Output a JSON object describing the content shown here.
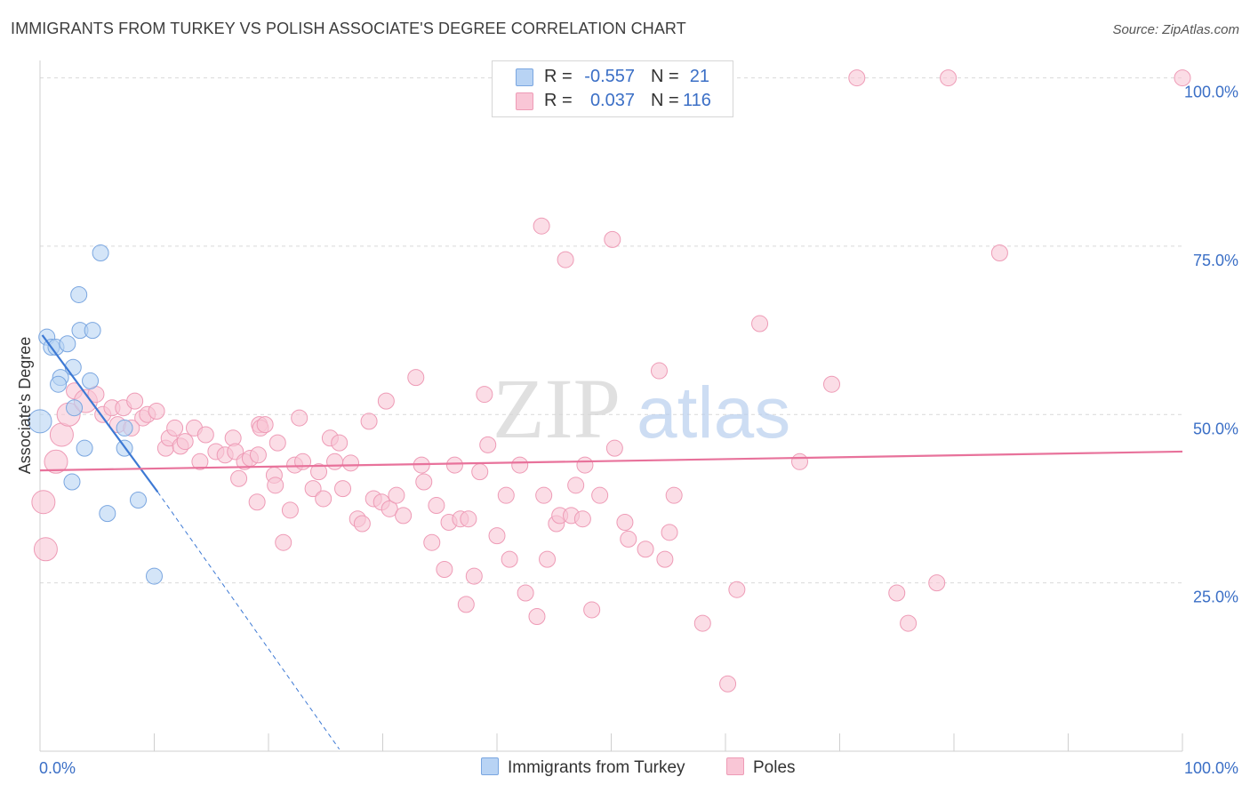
{
  "title": "IMMIGRANTS FROM TURKEY VS POLISH ASSOCIATE'S DEGREE CORRELATION CHART",
  "source": "Source: ZipAtlas.com",
  "watermark": {
    "part1": "ZIP",
    "part2": "atlas"
  },
  "colors": {
    "blue_fill": "#b8d3f4",
    "blue_stroke": "#7aa6e0",
    "blue_line": "#3d79d4",
    "pink_fill": "#f9c6d6",
    "pink_stroke": "#ee9bb6",
    "pink_line": "#e8729b",
    "axis_text": "#3b6fc6",
    "grid": "#d9d9d9"
  },
  "legend": {
    "rows": [
      {
        "series": "blue",
        "r_label": "R =",
        "r_value": "-0.557",
        "n_label": "N =",
        "n_value": "21"
      },
      {
        "series": "pink",
        "r_label": "R =",
        "r_value": "0.037",
        "n_label": "N =",
        "n_value": "116"
      }
    ]
  },
  "bottom_legend": [
    {
      "series": "blue",
      "label": "Immigrants from Turkey"
    },
    {
      "series": "pink",
      "label": "Poles"
    }
  ],
  "chart_data": {
    "type": "scatter",
    "ylabel": "Associate's Degree",
    "xlim": [
      0,
      100
    ],
    "ylim": [
      0,
      101
    ],
    "x_tick_labels": [
      {
        "value": 0,
        "label": "0.0%"
      },
      {
        "value": 100,
        "label": "100.0%"
      }
    ],
    "y_tick_labels": [
      {
        "value": 25,
        "label": "25.0%"
      },
      {
        "value": 50,
        "label": "50.0%"
      },
      {
        "value": 75,
        "label": "75.0%"
      },
      {
        "value": 100,
        "label": "100.0%"
      }
    ],
    "grid": true,
    "series": [
      {
        "name": "Immigrants from Turkey",
        "color": "blue",
        "points": [
          [
            0.0,
            49.0,
            2
          ],
          [
            0.6,
            61.5,
            1
          ],
          [
            1.0,
            60.0,
            1
          ],
          [
            1.4,
            60.0,
            1
          ],
          [
            2.4,
            60.5,
            1
          ],
          [
            5.3,
            74.0,
            1
          ],
          [
            3.4,
            67.8,
            1
          ],
          [
            3.5,
            62.5,
            1
          ],
          [
            4.6,
            62.5,
            1
          ],
          [
            2.9,
            57.0,
            1
          ],
          [
            1.8,
            55.5,
            1
          ],
          [
            1.6,
            54.5,
            1
          ],
          [
            4.4,
            55.0,
            1
          ],
          [
            3.9,
            45.0,
            1
          ],
          [
            7.4,
            48.0,
            1
          ],
          [
            7.4,
            45.0,
            1
          ],
          [
            2.8,
            40.0,
            1
          ],
          [
            5.9,
            35.3,
            1
          ],
          [
            8.6,
            37.3,
            1
          ],
          [
            10.0,
            26.0,
            1
          ],
          [
            3.0,
            51.0,
            1
          ]
        ],
        "trend": {
          "x0": 0.2,
          "y0": 61.8,
          "x1": 10.3,
          "y1": 38.5,
          "dash_to_x": 26.2,
          "dash_to_y": 0.3
        }
      },
      {
        "name": "Poles",
        "color": "pink",
        "points": [
          [
            0.3,
            37.0,
            2
          ],
          [
            0.5,
            30.0,
            2
          ],
          [
            1.4,
            43.0,
            2
          ],
          [
            1.9,
            47.0,
            2
          ],
          [
            2.5,
            50.0,
            2
          ],
          [
            3.0,
            53.5,
            1
          ],
          [
            4.0,
            52.0,
            2
          ],
          [
            4.9,
            53.0,
            1
          ],
          [
            5.5,
            50.0,
            1
          ],
          [
            6.3,
            51.0,
            1
          ],
          [
            6.8,
            48.5,
            1
          ],
          [
            7.3,
            51.0,
            1
          ],
          [
            8.3,
            52.0,
            1
          ],
          [
            9.0,
            49.5,
            1
          ],
          [
            9.4,
            50.0,
            1
          ],
          [
            10.2,
            50.5,
            1
          ],
          [
            8.0,
            48.0,
            1
          ],
          [
            11.0,
            45.0,
            1
          ],
          [
            11.3,
            46.5,
            1
          ],
          [
            12.3,
            45.3,
            1
          ],
          [
            11.8,
            48.0,
            1
          ],
          [
            12.7,
            46.0,
            1
          ],
          [
            13.5,
            48.0,
            1
          ],
          [
            14.5,
            47.0,
            1
          ],
          [
            14.0,
            43.0,
            1
          ],
          [
            15.4,
            44.5,
            1
          ],
          [
            16.2,
            44.0,
            1
          ],
          [
            16.9,
            46.5,
            1
          ],
          [
            17.1,
            44.5,
            1
          ],
          [
            17.4,
            40.5,
            1
          ],
          [
            17.9,
            43.0,
            1
          ],
          [
            18.4,
            43.5,
            1
          ],
          [
            19.0,
            37.0,
            1
          ],
          [
            19.1,
            44.0,
            1
          ],
          [
            19.2,
            48.5,
            1
          ],
          [
            19.3,
            48.0,
            1
          ],
          [
            19.7,
            48.5,
            1
          ],
          [
            20.5,
            41.0,
            1
          ],
          [
            20.6,
            39.5,
            1
          ],
          [
            20.8,
            45.8,
            1
          ],
          [
            21.3,
            31.0,
            1
          ],
          [
            21.9,
            35.8,
            1
          ],
          [
            22.7,
            49.5,
            1
          ],
          [
            22.3,
            42.5,
            1
          ],
          [
            23.0,
            43.0,
            1
          ],
          [
            23.9,
            39.0,
            1
          ],
          [
            24.4,
            41.5,
            1
          ],
          [
            24.8,
            37.5,
            1
          ],
          [
            25.4,
            46.5,
            1
          ],
          [
            25.8,
            43.0,
            1
          ],
          [
            26.2,
            45.8,
            1
          ],
          [
            26.5,
            39.0,
            1
          ],
          [
            27.2,
            42.8,
            1
          ],
          [
            27.8,
            34.5,
            1
          ],
          [
            28.2,
            33.8,
            1
          ],
          [
            28.8,
            49.0,
            1
          ],
          [
            29.2,
            37.5,
            1
          ],
          [
            29.9,
            37.0,
            1
          ],
          [
            30.3,
            52.0,
            1
          ],
          [
            30.6,
            36.0,
            1
          ],
          [
            31.2,
            38.0,
            1
          ],
          [
            31.8,
            35.0,
            1
          ],
          [
            32.9,
            55.5,
            1
          ],
          [
            33.4,
            42.5,
            1
          ],
          [
            33.6,
            40.0,
            1
          ],
          [
            34.3,
            31.0,
            1
          ],
          [
            34.7,
            36.5,
            1
          ],
          [
            35.4,
            27.0,
            1
          ],
          [
            35.8,
            34.0,
            1
          ],
          [
            36.3,
            42.5,
            1
          ],
          [
            36.8,
            34.5,
            1
          ],
          [
            37.3,
            21.8,
            1
          ],
          [
            38.0,
            26.0,
            1
          ],
          [
            38.5,
            41.5,
            1
          ],
          [
            38.9,
            53.0,
            1
          ],
          [
            37.5,
            34.5,
            1
          ],
          [
            39.2,
            45.5,
            1
          ],
          [
            40.0,
            32.0,
            1
          ],
          [
            40.8,
            38.0,
            1
          ],
          [
            41.1,
            28.5,
            1
          ],
          [
            42.0,
            42.5,
            1
          ],
          [
            42.5,
            23.5,
            1
          ],
          [
            43.5,
            20.0,
            1
          ],
          [
            43.9,
            78.0,
            1
          ],
          [
            44.1,
            38.0,
            1
          ],
          [
            44.4,
            28.5,
            1
          ],
          [
            45.2,
            33.8,
            1
          ],
          [
            45.5,
            35.0,
            1
          ],
          [
            46.0,
            73.0,
            1
          ],
          [
            46.5,
            35.0,
            1
          ],
          [
            46.9,
            39.5,
            1
          ],
          [
            47.7,
            42.5,
            1
          ],
          [
            47.5,
            34.5,
            1
          ],
          [
            48.3,
            21.0,
            1
          ],
          [
            49.0,
            38.0,
            1
          ],
          [
            50.1,
            76.0,
            1
          ],
          [
            50.3,
            45.0,
            1
          ],
          [
            51.2,
            34.0,
            1
          ],
          [
            51.5,
            31.5,
            1
          ],
          [
            53.0,
            30.0,
            1
          ],
          [
            54.2,
            56.5,
            1
          ],
          [
            54.7,
            28.5,
            1
          ],
          [
            55.1,
            32.5,
            1
          ],
          [
            55.5,
            38.0,
            1
          ],
          [
            58.0,
            19.0,
            1
          ],
          [
            60.2,
            10.0,
            1
          ],
          [
            61.0,
            24.0,
            1
          ],
          [
            63.0,
            63.5,
            1
          ],
          [
            66.5,
            43.0,
            1
          ],
          [
            69.3,
            54.5,
            1
          ],
          [
            71.5,
            100.0,
            1
          ],
          [
            75.0,
            23.5,
            1
          ],
          [
            76.0,
            19.0,
            1
          ],
          [
            78.5,
            25.0,
            1
          ],
          [
            79.5,
            100.0,
            1
          ],
          [
            84.0,
            74.0,
            1
          ],
          [
            100.0,
            100.0,
            1
          ]
        ],
        "trend": {
          "x0": 0,
          "y0": 41.7,
          "x1": 100,
          "y1": 44.5
        }
      }
    ]
  }
}
